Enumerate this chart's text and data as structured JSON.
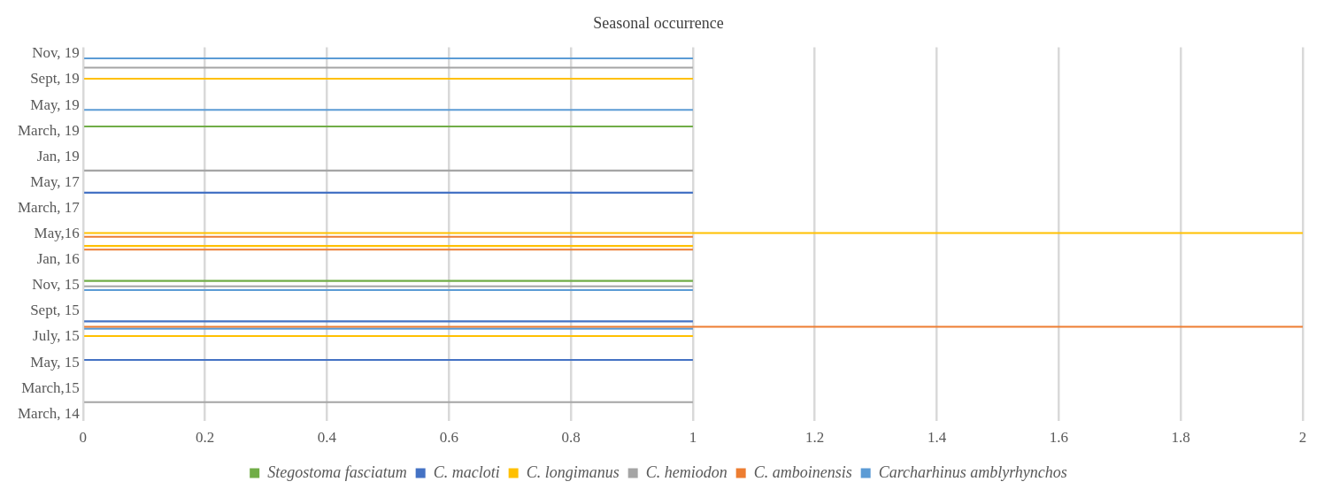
{
  "chart_data": {
    "type": "bar",
    "orientation": "horizontal",
    "title": "Seasonal occurrence",
    "categories": [
      "Nov, 19",
      null,
      "Sept, 19",
      null,
      "May, 19",
      null,
      "March, 19",
      null,
      "Jan, 19",
      null,
      "May, 17",
      null,
      "March, 17",
      null,
      "May,16",
      null,
      "Jan, 16",
      null,
      "Nov, 15",
      null,
      "Sept, 15",
      null,
      "July, 15",
      null,
      "May, 15",
      null,
      "March,15",
      null,
      "March, 14"
    ],
    "series": [
      {
        "name": "Stegostoma fasciatum",
        "color": "#70ad47",
        "values": [
          null,
          null,
          null,
          null,
          null,
          null,
          1,
          null,
          null,
          null,
          null,
          null,
          null,
          null,
          null,
          null,
          null,
          null,
          1,
          null,
          null,
          null,
          null,
          null,
          null,
          null,
          null,
          null,
          null
        ]
      },
      {
        "name": "C. macloti",
        "color": "#4472c4",
        "values": [
          null,
          null,
          null,
          null,
          null,
          null,
          null,
          null,
          null,
          null,
          null,
          1,
          null,
          null,
          null,
          null,
          null,
          null,
          null,
          null,
          null,
          1,
          null,
          null,
          1,
          null,
          null,
          null,
          null
        ]
      },
      {
        "name": "C. longimanus",
        "color": "#ffc000",
        "values": [
          null,
          null,
          1,
          null,
          null,
          null,
          null,
          null,
          null,
          null,
          null,
          null,
          null,
          null,
          2,
          1,
          null,
          null,
          null,
          null,
          null,
          null,
          1,
          null,
          null,
          null,
          null,
          null,
          null
        ]
      },
      {
        "name": "C. hemiodon",
        "color": "#a5a5a5",
        "values": [
          null,
          1,
          null,
          null,
          null,
          null,
          null,
          null,
          null,
          1,
          null,
          null,
          null,
          null,
          null,
          null,
          null,
          null,
          1,
          null,
          null,
          null,
          null,
          null,
          null,
          null,
          null,
          1,
          null
        ]
      },
      {
        "name": "C. amboinensis",
        "color": "#ed7d31",
        "values": [
          null,
          null,
          null,
          null,
          null,
          null,
          null,
          null,
          null,
          null,
          null,
          null,
          null,
          null,
          1,
          1,
          null,
          null,
          null,
          null,
          null,
          2,
          null,
          null,
          null,
          null,
          null,
          null,
          null
        ]
      },
      {
        "name": "Carcharhinus amblyrhynchos",
        "color": "#5b9bd5",
        "values": [
          1,
          null,
          null,
          null,
          1,
          null,
          null,
          null,
          null,
          null,
          null,
          null,
          null,
          null,
          null,
          null,
          null,
          null,
          1,
          null,
          null,
          1,
          null,
          null,
          null,
          null,
          null,
          null,
          null
        ]
      }
    ],
    "xlim": [
      0,
      2
    ],
    "xticks": [
      0,
      0.2,
      0.4,
      0.6,
      0.8,
      1,
      1.2,
      1.4,
      1.6,
      1.8,
      2
    ],
    "grid": "x",
    "legend": "bottom"
  }
}
